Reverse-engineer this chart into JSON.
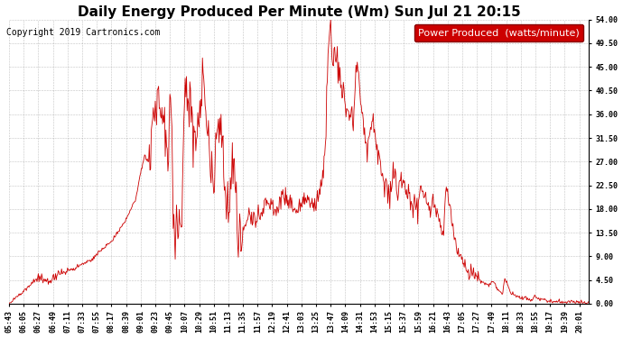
{
  "title": "Daily Energy Produced Per Minute (Wm) Sun Jul 21 20:15",
  "copyright": "Copyright 2019 Cartronics.com",
  "legend_label": "Power Produced  (watts/minute)",
  "legend_bg": "#cc0000",
  "legend_fg": "#ffffff",
  "line_color": "#cc0000",
  "bg_color": "#ffffff",
  "grid_color": "#999999",
  "ylabel_right_values": [
    0.0,
    4.5,
    9.0,
    13.5,
    18.0,
    22.5,
    27.0,
    31.5,
    36.0,
    40.5,
    45.0,
    49.5,
    54.0
  ],
  "ylim": [
    0.0,
    54.0
  ],
  "x_tick_labels": [
    "05:43",
    "06:05",
    "06:27",
    "06:49",
    "07:11",
    "07:33",
    "07:55",
    "08:17",
    "08:39",
    "09:01",
    "09:23",
    "09:45",
    "10:07",
    "10:29",
    "10:51",
    "11:13",
    "11:35",
    "11:57",
    "12:19",
    "12:41",
    "13:03",
    "13:25",
    "13:47",
    "14:09",
    "14:31",
    "14:53",
    "15:15",
    "15:37",
    "15:59",
    "16:21",
    "16:43",
    "17:05",
    "17:27",
    "17:49",
    "18:11",
    "18:33",
    "18:55",
    "19:17",
    "19:39",
    "20:01"
  ],
  "title_fontsize": 11,
  "copyright_fontsize": 7,
  "tick_fontsize": 6,
  "legend_fontsize": 8
}
